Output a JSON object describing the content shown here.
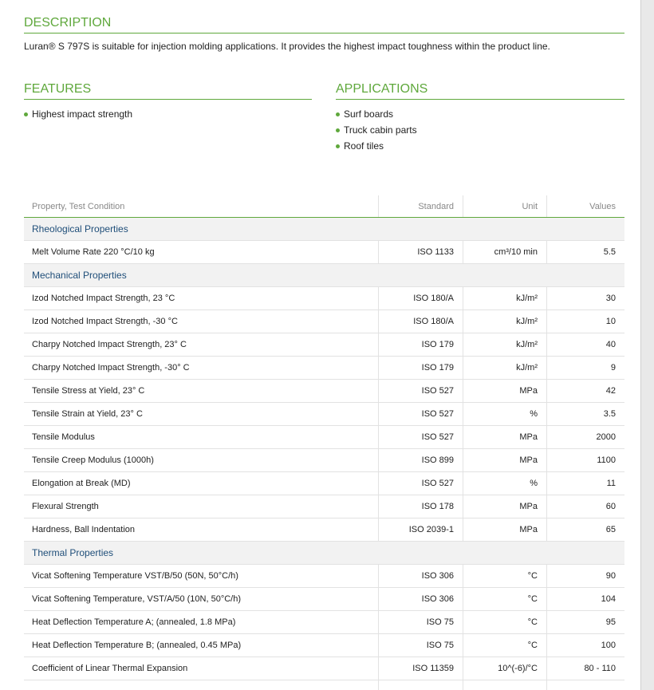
{
  "description": {
    "title": "DESCRIPTION",
    "text": "Luran® S 797S is suitable for injection molding applications. It provides the highest impact toughness within the product line."
  },
  "features": {
    "title": "FEATURES",
    "items": [
      "Highest impact strength"
    ]
  },
  "applications": {
    "title": "APPLICATIONS",
    "items": [
      "Surf boards",
      "Truck cabin parts",
      "Roof tiles"
    ]
  },
  "table": {
    "header": [
      "Property, Test Condition",
      "Standard",
      "Unit",
      "Values"
    ],
    "rows": [
      {
        "section": "Rheological Properties"
      },
      [
        "Melt Volume Rate 220 °C/10 kg",
        "ISO 1133",
        "cm³/10 min",
        "5.5"
      ],
      {
        "section": "Mechanical Properties"
      },
      [
        "Izod Notched Impact Strength, 23 °C",
        "ISO 180/A",
        "kJ/m²",
        "30"
      ],
      [
        "Izod Notched Impact Strength, -30 °C",
        "ISO 180/A",
        "kJ/m²",
        "10"
      ],
      [
        "Charpy Notched Impact Strength, 23° C",
        "ISO 179",
        "kJ/m²",
        "40"
      ],
      [
        "Charpy Notched Impact Strength, -30° C",
        "ISO 179",
        "kJ/m²",
        "9"
      ],
      [
        "Tensile Stress at Yield, 23° C",
        "ISO 527",
        "MPa",
        "42"
      ],
      [
        "Tensile Strain at Yield, 23° C",
        "ISO 527",
        "%",
        "3.5"
      ],
      [
        "Tensile Modulus",
        "ISO 527",
        "MPa",
        "2000"
      ],
      [
        "Tensile Creep Modulus (1000h)",
        "ISO 899",
        "MPa",
        "1100"
      ],
      [
        "Elongation at Break (MD)",
        "ISO 527",
        "%",
        "11"
      ],
      [
        "Flexural Strength",
        "ISO 178",
        "MPa",
        "60"
      ],
      [
        "Hardness, Ball Indentation",
        "ISO 2039-1",
        "MPa",
        "65"
      ],
      {
        "section": "Thermal Properties"
      },
      [
        "Vicat Softening Temperature VST/B/50 (50N, 50°C/h)",
        "ISO 306",
        "°C",
        "90"
      ],
      [
        "Vicat Softening Temperature, VST/A/50 (10N, 50°C/h)",
        "ISO 306",
        "°C",
        "104"
      ],
      [
        "Heat Deflection Temperature A; (annealed, 1.8 MPa)",
        "ISO 75",
        "°C",
        "95"
      ],
      [
        "Heat Deflection Temperature B; (annealed, 0.45 MPa)",
        "ISO 75",
        "°C",
        "100"
      ],
      [
        "Coefficient of Linear Thermal Expansion",
        "ISO 11359",
        "10^(-6)/°C",
        "80 - 110"
      ]
    ]
  }
}
